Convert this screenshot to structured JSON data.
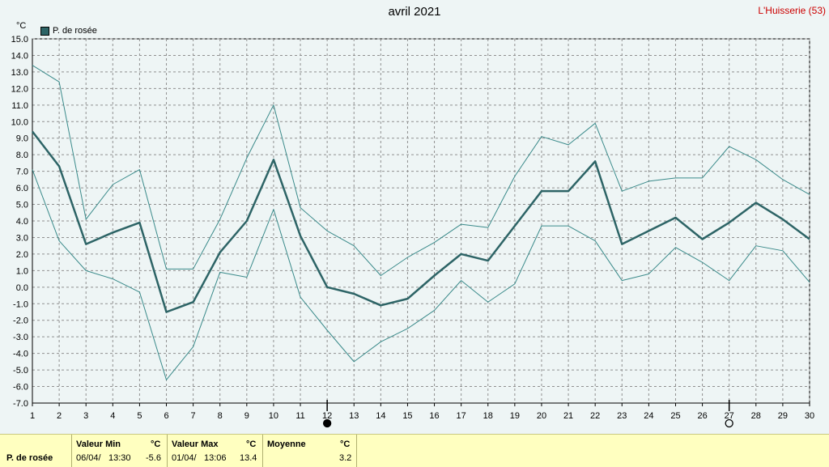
{
  "title": "avril 2021",
  "station": "L'Huisserie (53)",
  "unit": "°C",
  "legend_label": "P. de rosée",
  "colors": {
    "main_line": "#2d6466",
    "band_line": "#3a8a8a",
    "grid": "#909090",
    "background": "#eef5f5"
  },
  "chart_data": {
    "type": "line",
    "title": "avril 2021",
    "x": [
      1,
      2,
      3,
      4,
      5,
      6,
      7,
      8,
      9,
      10,
      11,
      12,
      13,
      14,
      15,
      16,
      17,
      18,
      19,
      20,
      21,
      22,
      23,
      24,
      25,
      26,
      27,
      28,
      29,
      30
    ],
    "xlim": [
      1,
      30
    ],
    "ylim": [
      -7,
      15
    ],
    "ylabel": "°C",
    "y_ticks": [
      "15.0",
      "14.0",
      "13.0",
      "12.0",
      "11.0",
      "10.0",
      "9.0",
      "8.0",
      "7.0",
      "6.0",
      "5.0",
      "4.0",
      "3.0",
      "2.0",
      "1.0",
      "0.0",
      "-1.0",
      "-2.0",
      "-3.0",
      "-4.0",
      "-5.0",
      "-6.0",
      "-7.0"
    ],
    "x_ticks": [
      "1",
      "2",
      "3",
      "4",
      "5",
      "6",
      "7",
      "8",
      "9",
      "10",
      "11",
      "12",
      "13",
      "14",
      "15",
      "16",
      "17",
      "18",
      "19",
      "20",
      "21",
      "22",
      "23",
      "24",
      "25",
      "26",
      "27",
      "28",
      "29",
      "30"
    ],
    "grid": true,
    "legend_position": "top-left",
    "series": [
      {
        "name": "P. de rosée",
        "role": "mean",
        "values": [
          9.4,
          7.3,
          2.6,
          3.3,
          3.9,
          -1.5,
          -0.9,
          2.1,
          4.0,
          7.7,
          3.1,
          0.0,
          -0.4,
          -1.1,
          -0.7,
          0.7,
          2.0,
          1.6,
          3.7,
          5.8,
          5.8,
          7.6,
          2.6,
          3.4,
          4.2,
          2.9,
          3.9,
          5.1,
          4.1,
          2.9
        ]
      },
      {
        "role": "max",
        "values": [
          13.4,
          12.4,
          4.1,
          6.2,
          7.1,
          1.1,
          1.1,
          4.1,
          7.8,
          11.0,
          4.8,
          3.4,
          2.5,
          0.7,
          1.8,
          2.7,
          3.8,
          3.6,
          6.7,
          9.1,
          8.6,
          9.9,
          5.8,
          6.4,
          6.6,
          6.6,
          8.5,
          7.7,
          6.5,
          5.6
        ]
      },
      {
        "role": "min",
        "values": [
          7.1,
          2.8,
          1.0,
          0.5,
          -0.3,
          -5.6,
          -3.6,
          0.9,
          0.6,
          4.7,
          -0.6,
          -2.6,
          -4.5,
          -3.3,
          -2.5,
          -1.4,
          0.4,
          -0.9,
          0.2,
          3.7,
          3.7,
          2.8,
          0.4,
          0.8,
          2.4,
          1.5,
          0.4,
          2.5,
          2.2,
          0.3
        ]
      }
    ],
    "moon_phases": [
      {
        "day": 12,
        "phase": "new"
      },
      {
        "day": 27,
        "phase": "full"
      }
    ]
  },
  "footer": {
    "row_label": "P. de rosée",
    "min": {
      "header": "Valeur Min",
      "unit": "°C",
      "date": "06/04/",
      "time": "13:30",
      "value": "-5.6"
    },
    "max": {
      "header": "Valeur Max",
      "unit": "°C",
      "date": "01/04/",
      "time": "13:06",
      "value": "13.4"
    },
    "mean": {
      "header": "Moyenne",
      "unit": "°C",
      "value": "3.2"
    }
  }
}
